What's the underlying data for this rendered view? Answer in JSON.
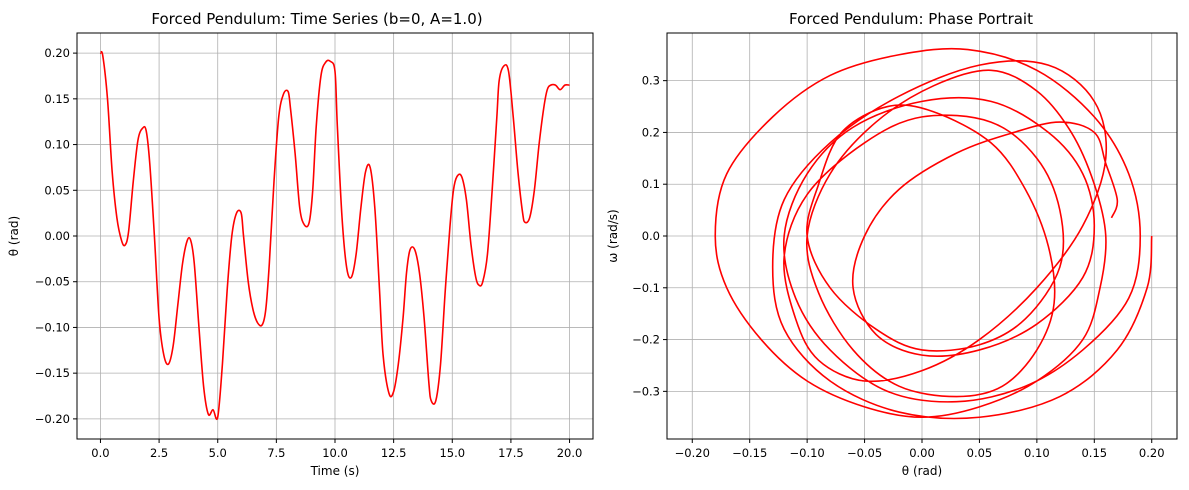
{
  "chart_data": [
    {
      "type": "line",
      "title": "Forced Pendulum: Time Series (b=0, A=1.0)",
      "xlabel": "Time (s)",
      "ylabel": "θ (rad)",
      "xlim": [
        -1.0,
        21.0
      ],
      "ylim": [
        -0.222,
        0.222
      ],
      "xticks": [
        0.0,
        2.5,
        5.0,
        7.5,
        10.0,
        12.5,
        15.0,
        17.5,
        20.0
      ],
      "xtick_labels": [
        "0.0",
        "2.5",
        "5.0",
        "7.5",
        "10.0",
        "12.5",
        "15.0",
        "17.5",
        "20.0"
      ],
      "yticks": [
        -0.2,
        -0.15,
        -0.1,
        -0.05,
        0.0,
        0.05,
        0.1,
        0.15,
        0.2
      ],
      "ytick_labels": [
        "−0.20",
        "−0.15",
        "−0.10",
        "−0.05",
        "0.00",
        "0.05",
        "0.10",
        "0.15",
        "0.20"
      ],
      "grid": true,
      "color": "#ff0000",
      "series": [
        {
          "x": [
            0.0,
            0.1,
            0.3,
            0.5,
            0.7,
            0.9,
            1.05,
            1.2,
            1.4,
            1.6,
            1.8,
            1.95,
            2.1,
            2.3,
            2.5,
            2.7,
            2.9,
            3.1,
            3.3,
            3.5,
            3.7,
            3.85,
            4.0,
            4.2,
            4.4,
            4.6,
            4.8,
            5.0,
            5.2,
            5.4,
            5.6,
            5.8,
            6.0,
            6.1,
            6.3,
            6.5,
            6.7,
            6.9,
            7.05,
            7.2,
            7.4,
            7.6,
            7.8,
            8.0,
            8.1,
            8.3,
            8.5,
            8.7,
            8.9,
            9.05,
            9.2,
            9.4,
            9.6,
            9.8,
            10.0,
            10.1,
            10.3,
            10.5,
            10.7,
            10.9,
            11.1,
            11.3,
            11.5,
            11.7,
            11.9,
            12.05,
            12.3,
            12.5,
            12.7,
            12.9,
            13.05,
            13.2,
            13.4,
            13.6,
            13.8,
            14.0,
            14.1,
            14.3,
            14.5,
            14.7,
            14.9,
            15.05,
            15.2,
            15.4,
            15.6,
            15.8,
            16.0,
            16.15,
            16.3,
            16.5,
            16.7,
            16.9,
            17.0,
            17.2,
            17.4,
            17.6,
            17.8,
            18.0,
            18.1,
            18.3,
            18.5,
            18.7,
            18.9,
            19.05,
            19.2,
            19.4,
            19.6,
            19.8,
            20.0
          ],
          "y": [
            0.2,
            0.197,
            0.15,
            0.07,
            0.02,
            -0.005,
            -0.01,
            0.005,
            0.06,
            0.105,
            0.118,
            0.115,
            0.08,
            0.0,
            -0.09,
            -0.13,
            -0.14,
            -0.12,
            -0.075,
            -0.03,
            -0.005,
            -0.005,
            -0.03,
            -0.1,
            -0.165,
            -0.195,
            -0.19,
            -0.198,
            -0.14,
            -0.06,
            0.0,
            0.025,
            0.025,
            0.0,
            -0.05,
            -0.08,
            -0.095,
            -0.097,
            -0.08,
            -0.03,
            0.06,
            0.13,
            0.155,
            0.158,
            0.14,
            0.09,
            0.03,
            0.012,
            0.015,
            0.05,
            0.12,
            0.175,
            0.19,
            0.191,
            0.18,
            0.12,
            0.02,
            -0.035,
            -0.045,
            -0.02,
            0.03,
            0.07,
            0.075,
            0.03,
            -0.06,
            -0.13,
            -0.172,
            -0.17,
            -0.14,
            -0.09,
            -0.04,
            -0.015,
            -0.015,
            -0.04,
            -0.09,
            -0.16,
            -0.18,
            -0.18,
            -0.14,
            -0.06,
            0.01,
            0.05,
            0.065,
            0.065,
            0.04,
            -0.01,
            -0.045,
            -0.054,
            -0.05,
            -0.02,
            0.05,
            0.13,
            0.17,
            0.186,
            0.18,
            0.13,
            0.07,
            0.025,
            0.015,
            0.02,
            0.05,
            0.1,
            0.14,
            0.16,
            0.165,
            0.165,
            0.16,
            0.165,
            0.165
          ]
        }
      ]
    },
    {
      "type": "line",
      "title": "Forced Pendulum: Phase Portrait",
      "xlabel": "θ (rad)",
      "ylabel": "ω (rad/s)",
      "xlim": [
        -0.222,
        0.222
      ],
      "ylim": [
        -0.392,
        0.392
      ],
      "xticks": [
        -0.2,
        -0.15,
        -0.1,
        -0.05,
        0.0,
        0.05,
        0.1,
        0.15,
        0.2
      ],
      "xtick_labels": [
        "−0.20",
        "−0.15",
        "−0.10",
        "−0.05",
        "0.00",
        "0.05",
        "0.10",
        "0.15",
        "0.20"
      ],
      "yticks": [
        -0.3,
        -0.2,
        -0.1,
        0.0,
        0.1,
        0.2,
        0.3
      ],
      "ytick_labels": [
        "−0.3",
        "−0.2",
        "−0.1",
        "0.0",
        "0.1",
        "0.2",
        "0.3"
      ],
      "grid": true,
      "color": "#ff0000",
      "series": [
        {
          "x": [
            0.2,
            0.196,
            0.17,
            0.12,
            0.05,
            -0.02,
            -0.08,
            -0.12,
            -0.13,
            -0.12,
            -0.08,
            -0.02,
            0.05,
            0.11,
            0.15,
            0.16,
            0.14,
            0.1,
            0.05,
            0.0,
            -0.05,
            -0.09,
            -0.11,
            -0.12,
            -0.1,
            -0.05,
            0.0,
            0.06,
            0.1,
            0.12,
            0.12,
            0.09,
            0.05,
            0.0,
            -0.04,
            -0.08,
            -0.1,
            -0.09,
            -0.07,
            -0.03,
            0.01,
            0.06,
            0.09,
            0.11,
            0.115,
            0.1,
            0.07,
            0.03,
            -0.02,
            -0.06,
            -0.09,
            -0.1,
            -0.08,
            -0.04,
            0.01,
            0.06,
            0.1,
            0.13,
            0.15,
            0.16,
            0.155,
            0.14,
            0.1,
            0.05,
            0.0,
            -0.05,
            -0.1,
            -0.14,
            -0.17,
            -0.18,
            -0.17,
            -0.13,
            -0.08,
            -0.02,
            0.04,
            0.1,
            0.15,
            0.18,
            0.19,
            0.18,
            0.14,
            0.09,
            0.03,
            -0.03,
            -0.08,
            -0.11,
            -0.12,
            -0.1,
            -0.06,
            0.0,
            0.06,
            0.11,
            0.14,
            0.15,
            0.14,
            0.1,
            0.05,
            0.0,
            -0.04,
            -0.06,
            -0.05,
            -0.02,
            0.03,
            0.08,
            0.12,
            0.15,
            0.16,
            0.17,
            0.165
          ],
          "y": [
            0.0,
            -0.1,
            -0.22,
            -0.31,
            -0.35,
            -0.34,
            -0.28,
            -0.18,
            -0.06,
            0.07,
            0.18,
            0.27,
            0.33,
            0.33,
            0.26,
            0.15,
            0.02,
            -0.1,
            -0.2,
            -0.26,
            -0.28,
            -0.24,
            -0.16,
            -0.04,
            0.08,
            0.18,
            0.23,
            0.22,
            0.15,
            0.05,
            -0.06,
            -0.16,
            -0.21,
            -0.22,
            -0.18,
            -0.1,
            0.0,
            0.1,
            0.2,
            0.25,
            0.24,
            0.18,
            0.09,
            -0.02,
            -0.13,
            -0.22,
            -0.29,
            -0.31,
            -0.29,
            -0.22,
            -0.11,
            0.0,
            0.12,
            0.22,
            0.29,
            0.32,
            0.28,
            0.2,
            0.1,
            0.0,
            -0.1,
            -0.2,
            -0.28,
            -0.33,
            -0.35,
            -0.33,
            -0.28,
            -0.2,
            -0.1,
            0.0,
            0.12,
            0.23,
            0.31,
            0.35,
            0.36,
            0.32,
            0.23,
            0.12,
            0.0,
            -0.12,
            -0.22,
            -0.29,
            -0.32,
            -0.3,
            -0.22,
            -0.12,
            0.0,
            0.12,
            0.21,
            0.26,
            0.26,
            0.2,
            0.12,
            0.02,
            -0.08,
            -0.17,
            -0.22,
            -0.23,
            -0.19,
            -0.1,
            0.0,
            0.09,
            0.16,
            0.2,
            0.22,
            0.2,
            0.14,
            0.07,
            0.035
          ]
        }
      ]
    }
  ]
}
